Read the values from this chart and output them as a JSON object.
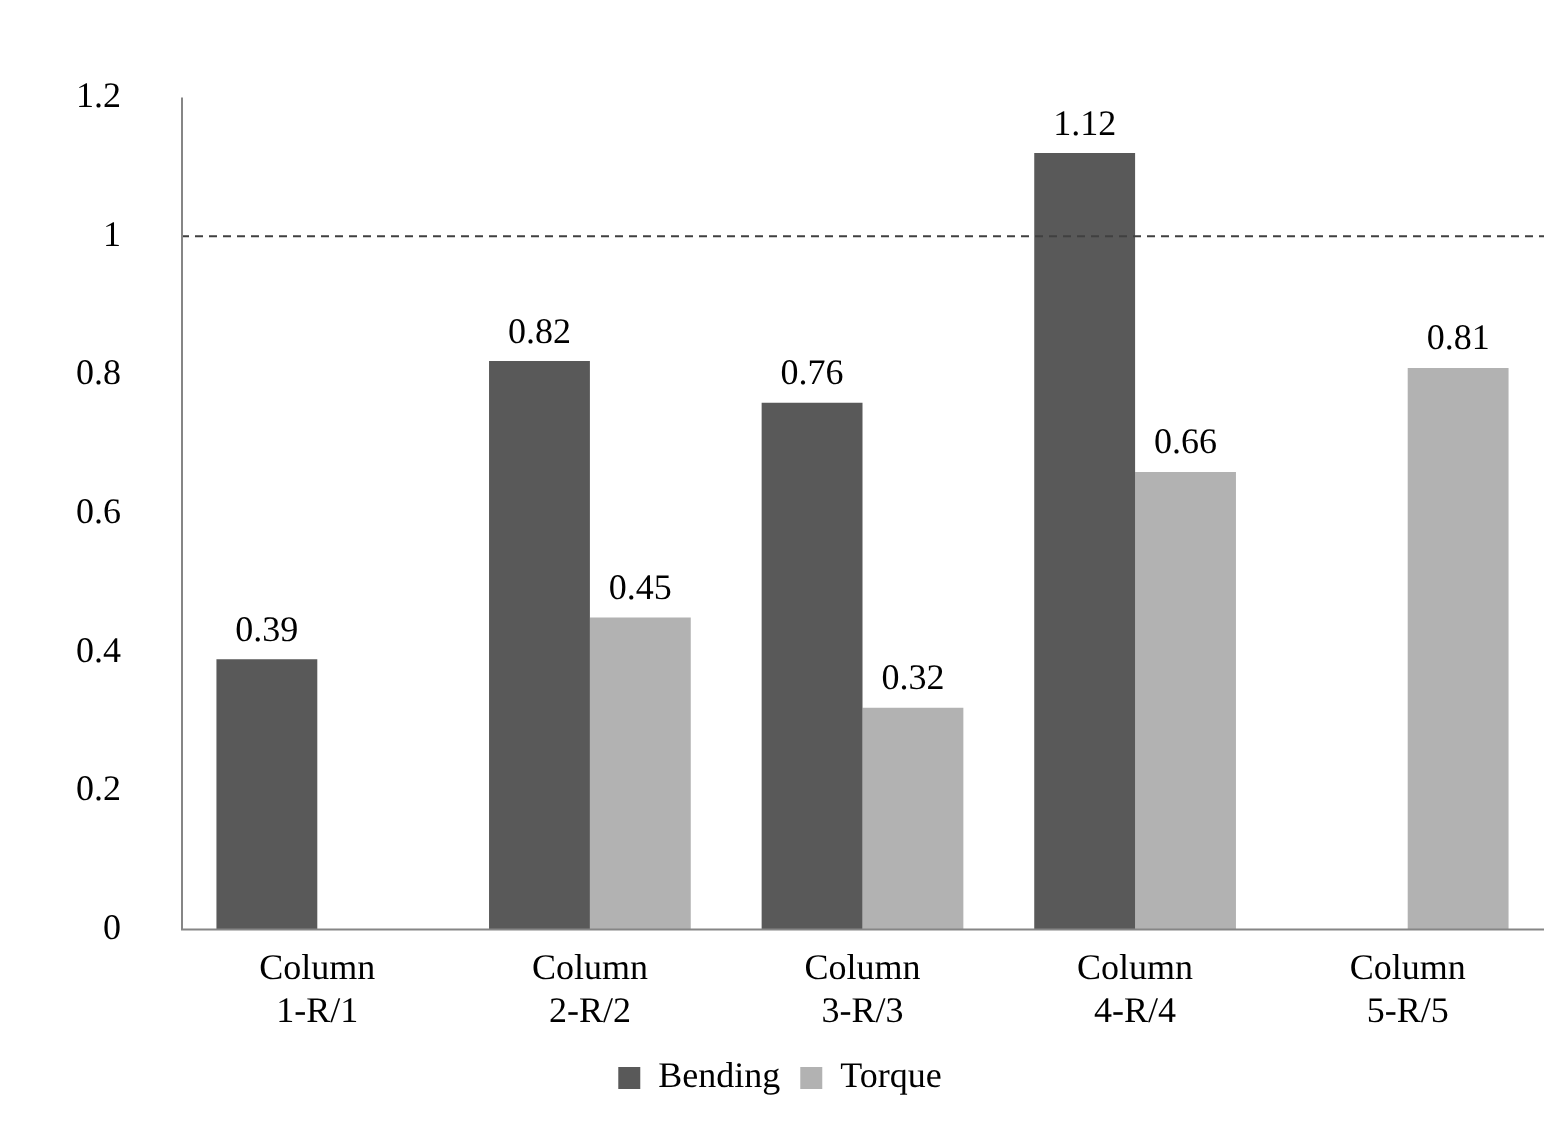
{
  "chart_data": {
    "type": "bar",
    "categories": [
      "Column 1-R/1",
      "Column 2-R/2",
      "Column 3-R/3",
      "Column 4-R/4",
      "Column 5-R/5"
    ],
    "series": [
      {
        "name": "Bending",
        "color": "#595959",
        "values": [
          0.39,
          0.82,
          0.76,
          1.12,
          null
        ]
      },
      {
        "name": "Torque",
        "color": "#b2b2b2",
        "values": [
          null,
          0.45,
          0.32,
          0.66,
          0.81
        ]
      }
    ],
    "ylim": [
      0,
      1.2
    ],
    "yticks": [
      0,
      0.2,
      0.4,
      0.6,
      0.8,
      1,
      1.2
    ],
    "grid": false,
    "legend": "bottom",
    "data_labels": true,
    "ref_lines": [
      {
        "axis": "y",
        "value": 1,
        "color": "#404040",
        "line_style": "dashed"
      }
    ]
  }
}
